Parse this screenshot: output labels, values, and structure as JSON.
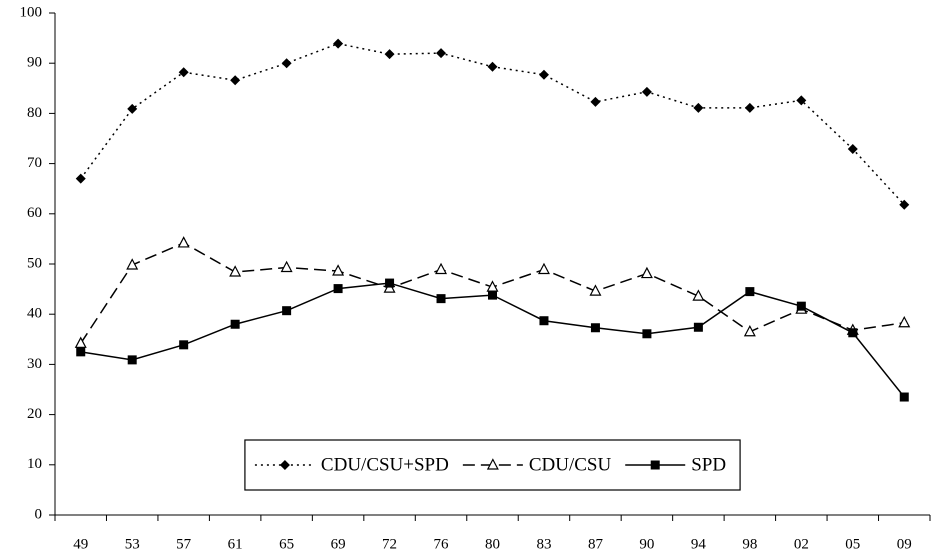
{
  "chart_data": {
    "type": "line",
    "categories": [
      "49",
      "53",
      "57",
      "61",
      "65",
      "69",
      "72",
      "76",
      "80",
      "83",
      "87",
      "90",
      "94",
      "98",
      "02",
      "05",
      "09"
    ],
    "series": [
      {
        "name": "CDU/CSU+SPD",
        "color": "#000000",
        "line_style": "dotted",
        "marker": "diamond",
        "values": [
          67.0,
          80.9,
          88.2,
          86.6,
          90.0,
          93.9,
          91.8,
          92.0,
          89.3,
          87.7,
          82.3,
          84.3,
          81.1,
          81.1,
          82.6,
          72.9,
          61.8
        ]
      },
      {
        "name": "CDU/CSU",
        "color": "#000000",
        "line_style": "dashed",
        "marker": "triangle",
        "values": [
          34.2,
          49.8,
          54.2,
          48.4,
          49.3,
          48.6,
          45.2,
          48.9,
          45.4,
          48.9,
          44.6,
          48.1,
          43.6,
          36.5,
          41.0,
          36.8,
          38.3
        ]
      },
      {
        "name": "SPD",
        "color": "#000000",
        "line_style": "solid",
        "marker": "square",
        "values": [
          32.5,
          30.9,
          33.9,
          38.0,
          40.7,
          45.1,
          46.2,
          43.1,
          43.8,
          38.7,
          37.3,
          36.1,
          37.4,
          44.5,
          41.6,
          36.3,
          23.5
        ]
      }
    ],
    "ylim": [
      0,
      100
    ],
    "yticks": [
      0,
      10,
      20,
      30,
      40,
      50,
      60,
      70,
      80,
      90,
      100
    ],
    "grid": false,
    "legend": "bottom"
  }
}
